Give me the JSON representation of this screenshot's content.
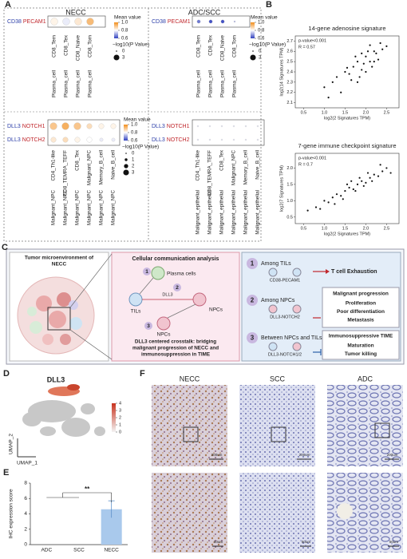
{
  "panel_a": {
    "label": "A",
    "legend": {
      "mean_title": "Mean value",
      "mean_ticks": [
        {
          "value": 1,
          "label": "1.0"
        },
        0.8,
        0.6
      ],
      "mean_colors": [
        "#2f3fbf",
        "#ffffff",
        "#f28e1c"
      ],
      "p_title": "−log10(P Value)",
      "p_top": [
        0,
        3
      ],
      "p_bottom": [
        0,
        1,
        2,
        3
      ]
    },
    "plots": [
      {
        "title": "NECC",
        "top": {
          "rows": [
            {
              "ligand": "CD38",
              "receptor": "PECAM1"
            }
          ],
          "targets": [
            "CD8_Tem",
            "CD8_Tex",
            "CD8_Naive",
            "CD8_Tom"
          ],
          "sources": [
            "Plasma_cell",
            "Plasma_cell",
            "Plasma_cell",
            "Plasma_cell"
          ],
          "mean": [
            [
              0.82,
              0.78,
              0.84,
              0.92
            ]
          ],
          "logp": [
            [
              3,
              3,
              3,
              3
            ]
          ]
        },
        "bottom": {
          "rows": [
            {
              "ligand": "DLL3",
              "receptor": "NOTCH1"
            },
            {
              "ligand": "DLL3",
              "receptor": "NOTCH2"
            }
          ],
          "targets": [
            "CD4_Th1-like",
            "CD8_TEMRA_TEFF",
            "CD8_Tex",
            "Malignant_NPC",
            "Memory_B_cell",
            "Naive_B_cell"
          ],
          "sources": [
            "Malignant_NPC",
            "Malignant_NPC",
            "Malignant_NPC",
            "Malignant_NPC",
            "Malignant_NPC",
            "Malignant_NPC"
          ],
          "mean": [
            [
              0.9,
              0.94,
              0.9,
              0.86,
              0.82,
              0.82
            ],
            [
              0.84,
              0.86,
              0.82,
              0.8,
              0.78,
              0.78
            ]
          ],
          "logp": [
            [
              3,
              3,
              3,
              2,
              2,
              2
            ],
            [
              2,
              2,
              2,
              2,
              1,
              1
            ]
          ]
        }
      },
      {
        "title": "ADC/SCC",
        "top": {
          "rows": [
            {
              "ligand": "CD38",
              "receptor": "PECAM1"
            }
          ],
          "targets": [
            "CD8_Tem",
            "CD8_Tex",
            "CD8_Naive",
            "CD8_Tom"
          ],
          "sources": [
            "Plasma_cell",
            "Plasma_cell",
            "Plasma_cell",
            "Plasma_cell"
          ],
          "mean": [
            [
              0.66,
              0.62,
              0.62,
              0.72
            ]
          ],
          "logp": [
            [
              1,
              1,
              1,
              0
            ]
          ]
        },
        "bottom": {
          "rows": [
            {
              "ligand": "DLL3",
              "receptor": "NOTCH1"
            },
            {
              "ligand": "DLL3",
              "receptor": "NOTCH2"
            }
          ],
          "targets": [
            "CD4_Th1-like",
            "CD8_TEMRA_TEFF",
            "CD8_Tex",
            "Malignant_NPC",
            "Memory_B_cell",
            "Naive_B_cell"
          ],
          "sources": [
            "Malignant_epithelial",
            "Malignant_epithelial",
            "Malignant_epithelial",
            "Malignant_epithelial",
            "Malignant_epithelial",
            "Malignant_epithelial"
          ],
          "mean": [
            [
              0.78,
              0.78,
              0.78,
              0.78,
              0.78,
              0.78
            ],
            [
              0.78,
              0.78,
              0.78,
              0.78,
              0.78,
              0.78
            ]
          ],
          "logp": [
            [
              0,
              0,
              0,
              0,
              0,
              0
            ],
            [
              0,
              0,
              0,
              0,
              0,
              0
            ]
          ]
        }
      }
    ]
  },
  "panel_b": {
    "label": "B",
    "charts": [
      {
        "type": "scatter",
        "title": "14-gene adenosine signature",
        "stats": [
          "p-value<0.001",
          "R = 0.57"
        ],
        "xlabel": "log2(2 Signatures TPM)",
        "ylabel": "log2(14 Signatures TPM)",
        "x": [
          1.0,
          1.2,
          1.3,
          1.5,
          1.6,
          1.7,
          1.8,
          1.9,
          2.0,
          2.1,
          2.2,
          2.3,
          2.4,
          1.4,
          1.75,
          1.85,
          1.95,
          2.05,
          2.15,
          2.25,
          1.1,
          1.65,
          2.35,
          2.5,
          1.55,
          1.9,
          2.0,
          2.1,
          1.8,
          2.2
        ],
        "y": [
          2.25,
          2.3,
          2.35,
          2.4,
          2.38,
          2.45,
          2.5,
          2.42,
          2.55,
          2.5,
          2.6,
          2.52,
          2.62,
          2.2,
          2.55,
          2.35,
          2.48,
          2.6,
          2.45,
          2.58,
          2.15,
          2.32,
          2.68,
          2.65,
          2.44,
          2.58,
          2.4,
          2.66,
          2.3,
          2.5
        ],
        "xlim": [
          0.3,
          2.8
        ],
        "ylim": [
          2.05,
          2.75
        ],
        "xticks": [
          0.5,
          {
            "value": 1,
            "label": "1.0"
          },
          1.5,
          {
            "value": 2,
            "label": "2.0"
          },
          2.5
        ],
        "yticks": [
          2.1,
          2.2,
          2.3,
          2.4,
          2.5,
          2.6,
          2.7
        ]
      },
      {
        "type": "scatter",
        "title": "7-gene immune checkpoint signature",
        "stats": [
          "p-value<0.001",
          "R = 0.7"
        ],
        "xlabel": "log2(2 Signatures TPM)",
        "ylabel": "log2(7 Signatures TPM)",
        "x": [
          0.6,
          0.8,
          1.0,
          1.1,
          1.2,
          1.3,
          1.4,
          1.5,
          1.6,
          1.7,
          1.8,
          1.9,
          2.0,
          2.1,
          2.2,
          2.3,
          2.4,
          2.5,
          1.25,
          1.55,
          1.75,
          1.85,
          1.95,
          2.05,
          2.15,
          1.45,
          1.65,
          2.35,
          0.9,
          2.6
        ],
        "y": [
          0.7,
          0.8,
          1.0,
          0.95,
          1.1,
          1.2,
          1.15,
          1.3,
          1.4,
          1.35,
          1.5,
          1.6,
          1.55,
          1.7,
          1.8,
          1.75,
          1.9,
          2.0,
          0.9,
          1.5,
          1.3,
          1.7,
          1.45,
          1.85,
          1.6,
          1.05,
          1.6,
          2.1,
          0.75,
          1.85
        ],
        "xlim": [
          0.3,
          2.8
        ],
        "ylim": [
          0.3,
          2.45
        ],
        "xticks": [
          0.5,
          {
            "value": 1,
            "label": "1.0"
          },
          1.5,
          {
            "value": 2,
            "label": "2.0"
          },
          2.5
        ],
        "yticks": [
          0.5,
          {
            "value": 1,
            "label": "1.0"
          },
          1.5,
          {
            "value": 2,
            "label": "2.0"
          }
        ]
      }
    ]
  },
  "panel_c": {
    "label": "C",
    "tme_title": [
      "Tumor microenvironment of",
      "NECC"
    ],
    "comm_title": "Cellular communication analysis",
    "plasma": "Plasma cells",
    "tils": "TILs",
    "npcs": "NPCs",
    "npcs2": "NPCs",
    "dll3": "DLL3",
    "nums": [
      "1",
      "2",
      "3"
    ],
    "crosstalk": [
      "DLL3 centered crosstalk: bridging",
      "malignant progression of NECC and",
      "immunosuppression in TIME"
    ],
    "items": [
      {
        "num": "1",
        "title": "Among TILs",
        "pair": "CD38-PECAM1",
        "effect": "T cell Exhaustion"
      },
      {
        "num": "2",
        "title": "Among NPCs",
        "pair": "DLL3-NOTCH2",
        "box_title": "Malignant progression",
        "effects": [
          "Proliferation",
          "Poor differentiation",
          "Metastasis"
        ]
      },
      {
        "num": "3",
        "title": "Between NPCs and TILs",
        "pair": "DLL3-NOTCH1/2",
        "box_title": "Immunosuppressive TIME",
        "effects": [
          "Maturation",
          "Tumor killing"
        ]
      }
    ]
  },
  "panel_d": {
    "label": "D",
    "title": "DLL3",
    "xlabel": "UMAP_1",
    "ylabel": "UMAP_2",
    "lim": [
      0,
      4
    ],
    "ticks": [
      0,
      1,
      2,
      3,
      4
    ]
  },
  "panel_e": {
    "label": "E",
    "chart_data": {
      "type": "bar",
      "categories": [
        "ADC",
        "SCC",
        "NECC"
      ],
      "values": [
        0,
        0,
        4.6
      ],
      "errors": [
        0,
        0,
        1.1
      ],
      "color": "#a9c9ec",
      "ylabel": "IHC expression score",
      "ylim": [
        0,
        8
      ],
      "yticks": [
        0,
        2,
        4,
        6,
        8
      ],
      "significance": "**"
    }
  },
  "panel_f": {
    "label": "F",
    "titles": [
      "NECC",
      "SCC",
      "ADC"
    ],
    "scale_top": "200um",
    "scale_bottom": "50um"
  }
}
